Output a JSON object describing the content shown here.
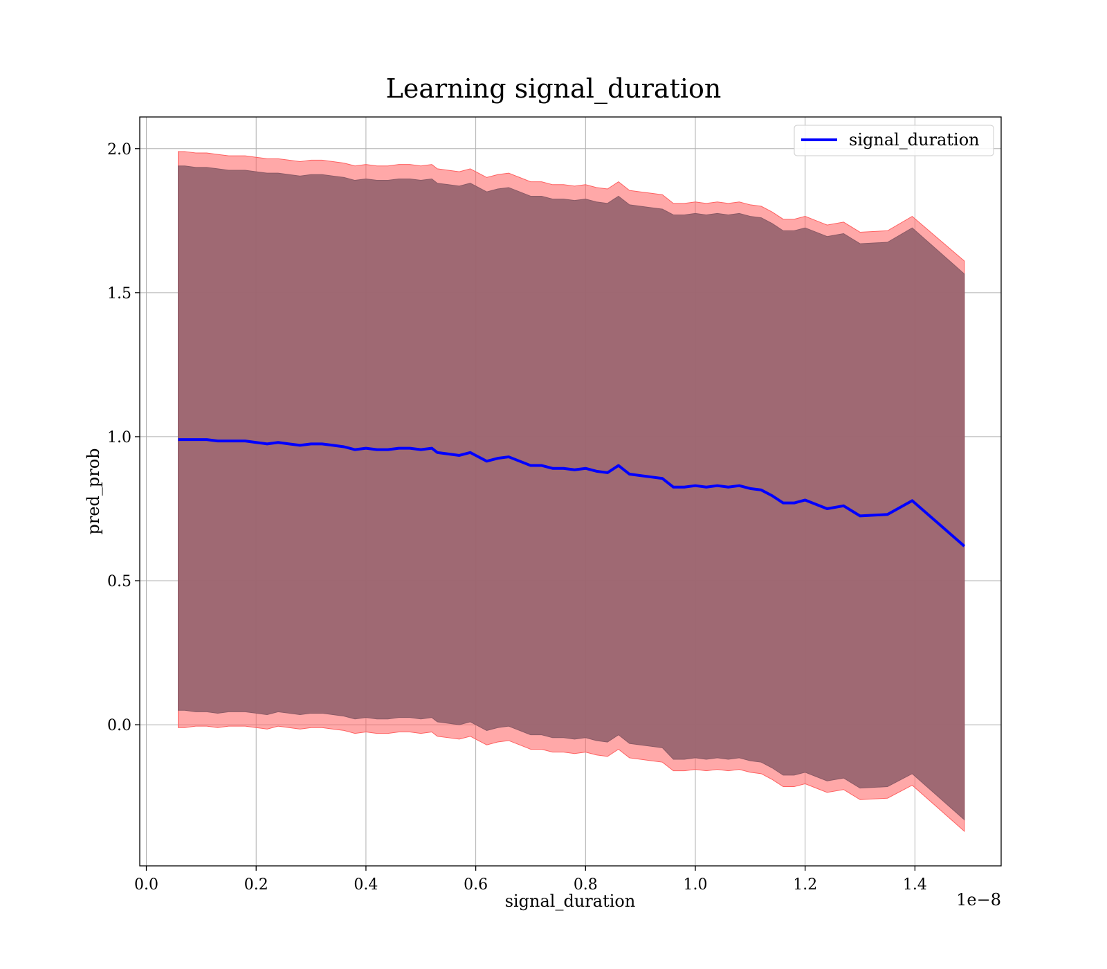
{
  "chart_data": {
    "type": "line",
    "title": "Learning signal_duration",
    "xlabel": "signal_duration",
    "ylabel": "pred_prob",
    "x_offset_text": "1e−8",
    "x_scale_multiplier": 1e-08,
    "xlim": [
      -0.012,
      1.557
    ],
    "ylim": [
      -0.49,
      2.11
    ],
    "x_ticks": [
      0.0,
      0.2,
      0.4,
      0.6,
      0.8,
      1.0,
      1.2,
      1.4
    ],
    "x_tick_labels": [
      "0.0",
      "0.2",
      "0.4",
      "0.6",
      "0.8",
      "1.0",
      "1.2",
      "1.4"
    ],
    "y_ticks": [
      0.0,
      0.5,
      1.0,
      1.5,
      2.0
    ],
    "y_tick_labels": [
      "0.0",
      "0.5",
      "1.0",
      "1.5",
      "2.0"
    ],
    "grid": true,
    "legend_position": "top-right",
    "series": [
      {
        "name": "signal_duration",
        "color": "#0000ff",
        "x": [
          0.058,
          0.07,
          0.09,
          0.11,
          0.13,
          0.15,
          0.18,
          0.2,
          0.22,
          0.24,
          0.26,
          0.28,
          0.3,
          0.32,
          0.34,
          0.36,
          0.38,
          0.4,
          0.42,
          0.44,
          0.46,
          0.48,
          0.5,
          0.52,
          0.53,
          0.55,
          0.57,
          0.59,
          0.6,
          0.62,
          0.64,
          0.66,
          0.68,
          0.7,
          0.72,
          0.74,
          0.76,
          0.78,
          0.8,
          0.82,
          0.84,
          0.86,
          0.88,
          0.9,
          0.92,
          0.94,
          0.96,
          0.98,
          1.0,
          1.02,
          1.04,
          1.06,
          1.08,
          1.1,
          1.12,
          1.14,
          1.16,
          1.18,
          1.2,
          1.22,
          1.24,
          1.27,
          1.3,
          1.35,
          1.395,
          1.49
        ],
        "y": [
          0.99,
          0.99,
          0.99,
          0.99,
          0.985,
          0.985,
          0.985,
          0.98,
          0.975,
          0.98,
          0.975,
          0.97,
          0.975,
          0.975,
          0.97,
          0.965,
          0.955,
          0.96,
          0.955,
          0.955,
          0.96,
          0.96,
          0.955,
          0.96,
          0.945,
          0.94,
          0.935,
          0.945,
          0.935,
          0.915,
          0.925,
          0.93,
          0.915,
          0.9,
          0.9,
          0.89,
          0.89,
          0.885,
          0.89,
          0.88,
          0.875,
          0.9,
          0.87,
          0.865,
          0.86,
          0.855,
          0.825,
          0.825,
          0.83,
          0.825,
          0.83,
          0.825,
          0.83,
          0.82,
          0.815,
          0.795,
          0.77,
          0.77,
          0.78,
          0.765,
          0.75,
          0.76,
          0.725,
          0.73,
          0.778,
          0.62
        ]
      }
    ],
    "band_outer": {
      "color": "#ff6060",
      "upper": [
        1.99,
        1.99,
        1.985,
        1.985,
        1.98,
        1.975,
        1.975,
        1.97,
        1.965,
        1.965,
        1.96,
        1.955,
        1.96,
        1.96,
        1.955,
        1.95,
        1.94,
        1.945,
        1.94,
        1.94,
        1.945,
        1.945,
        1.94,
        1.945,
        1.93,
        1.925,
        1.92,
        1.93,
        1.92,
        1.9,
        1.91,
        1.915,
        1.9,
        1.885,
        1.885,
        1.875,
        1.875,
        1.87,
        1.875,
        1.865,
        1.86,
        1.885,
        1.855,
        1.85,
        1.845,
        1.84,
        1.81,
        1.81,
        1.815,
        1.81,
        1.815,
        1.81,
        1.815,
        1.805,
        1.8,
        1.78,
        1.755,
        1.755,
        1.765,
        1.75,
        1.735,
        1.745,
        1.71,
        1.715,
        1.765,
        1.61
      ],
      "lower": [
        -0.01,
        -0.01,
        -0.005,
        -0.005,
        -0.01,
        -0.005,
        -0.005,
        -0.01,
        -0.015,
        -0.005,
        -0.01,
        -0.015,
        -0.01,
        -0.01,
        -0.015,
        -0.02,
        -0.03,
        -0.025,
        -0.03,
        -0.03,
        -0.025,
        -0.025,
        -0.03,
        -0.025,
        -0.04,
        -0.045,
        -0.05,
        -0.04,
        -0.05,
        -0.07,
        -0.06,
        -0.055,
        -0.07,
        -0.085,
        -0.085,
        -0.095,
        -0.095,
        -0.1,
        -0.095,
        -0.105,
        -0.11,
        -0.085,
        -0.115,
        -0.12,
        -0.125,
        -0.13,
        -0.16,
        -0.16,
        -0.155,
        -0.16,
        -0.155,
        -0.16,
        -0.155,
        -0.165,
        -0.17,
        -0.19,
        -0.215,
        -0.215,
        -0.205,
        -0.22,
        -0.235,
        -0.225,
        -0.26,
        -0.255,
        -0.21,
        -0.37
      ]
    },
    "band_inner": {
      "color": "#9a6570",
      "upper": [
        1.94,
        1.94,
        1.935,
        1.935,
        1.93,
        1.925,
        1.925,
        1.92,
        1.915,
        1.915,
        1.91,
        1.905,
        1.91,
        1.91,
        1.905,
        1.9,
        1.89,
        1.895,
        1.89,
        1.89,
        1.895,
        1.895,
        1.89,
        1.895,
        1.88,
        1.875,
        1.87,
        1.88,
        1.87,
        1.85,
        1.86,
        1.865,
        1.85,
        1.835,
        1.835,
        1.825,
        1.825,
        1.82,
        1.825,
        1.815,
        1.81,
        1.835,
        1.805,
        1.8,
        1.795,
        1.79,
        1.77,
        1.77,
        1.775,
        1.77,
        1.775,
        1.77,
        1.775,
        1.765,
        1.76,
        1.74,
        1.715,
        1.715,
        1.725,
        1.71,
        1.695,
        1.705,
        1.67,
        1.675,
        1.725,
        1.565
      ],
      "lower": [
        0.05,
        0.05,
        0.045,
        0.045,
        0.04,
        0.045,
        0.045,
        0.04,
        0.035,
        0.045,
        0.04,
        0.035,
        0.04,
        0.04,
        0.035,
        0.03,
        0.02,
        0.025,
        0.02,
        0.02,
        0.025,
        0.025,
        0.02,
        0.025,
        0.01,
        0.005,
        0.0,
        0.01,
        0.0,
        -0.02,
        -0.01,
        -0.005,
        -0.02,
        -0.035,
        -0.035,
        -0.045,
        -0.045,
        -0.05,
        -0.045,
        -0.055,
        -0.06,
        -0.035,
        -0.065,
        -0.07,
        -0.075,
        -0.08,
        -0.12,
        -0.12,
        -0.115,
        -0.12,
        -0.115,
        -0.12,
        -0.115,
        -0.125,
        -0.13,
        -0.15,
        -0.175,
        -0.175,
        -0.165,
        -0.18,
        -0.195,
        -0.185,
        -0.22,
        -0.215,
        -0.17,
        -0.33
      ]
    }
  }
}
